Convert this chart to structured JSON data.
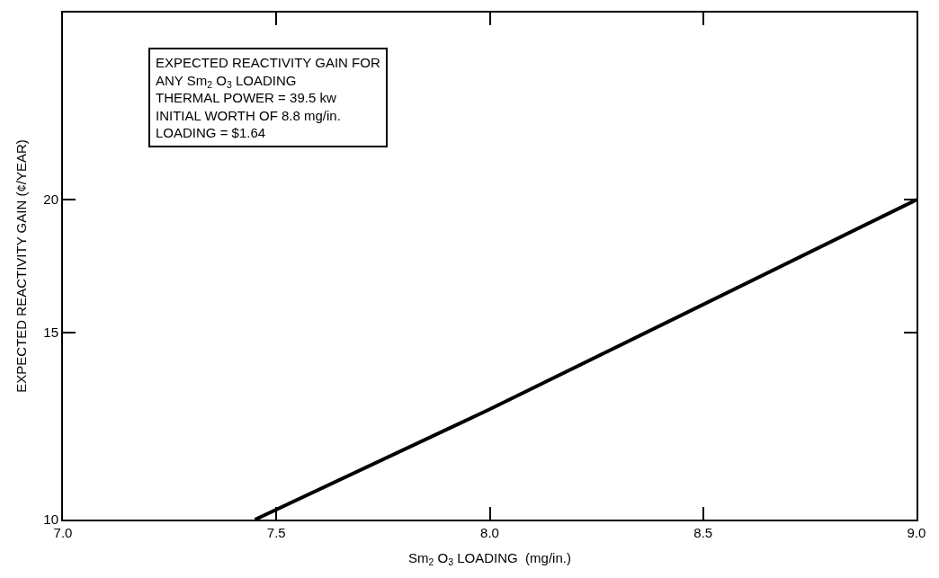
{
  "chart_data": {
    "type": "line",
    "xlabel": "Sm$_{2}$ O$_{3}$ LOADING  (mg/in.)",
    "ylabel": "EXPECTED REACTIVITY GAIN (¢/YEAR)",
    "x": [
      7.45,
      8.0,
      9.0
    ],
    "series": [
      {
        "color": "#000000",
        "values": [
          10,
          12.7,
          20
        ]
      }
    ],
    "xlim": [
      7.0,
      9.0
    ],
    "xticks": [
      {
        "value": 7.0,
        "label": "7.0"
      },
      7.5,
      {
        "value": 8.0,
        "label": "8.0"
      },
      8.5,
      {
        "value": 9.0,
        "label": "9.0"
      }
    ],
    "ylim": [
      10,
      30
    ],
    "yticks": [
      10,
      15,
      20
    ],
    "log": "y",
    "marker": "none",
    "line_style": "solid",
    "annotations": [
      "EXPECTED REACTIVITY GAIN FOR\nANY Sm$_{2}$ O$_{3}$ LOADING\nTHERMAL POWER = 39.5 kw\nINITIAL WORTH OF 8.8 mg/in.\nLOADING = $1.64"
    ]
  }
}
